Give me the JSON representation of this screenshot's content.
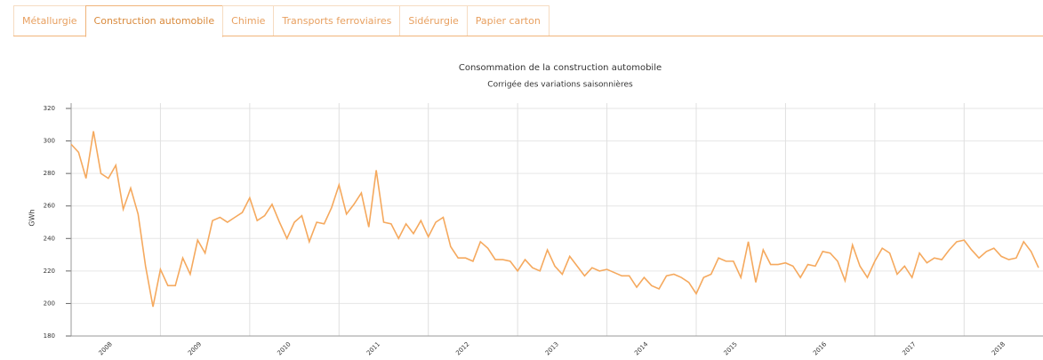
{
  "tabs": [
    "Métallurgie",
    "Construction automobile",
    "Chimie",
    "Transports ferroviaires",
    "Sidérurgie",
    "Papier carton"
  ],
  "active_tab": 1,
  "chart_data": {
    "type": "line",
    "title": "Consommation de la construction automobile",
    "subtitle": "Corrigée des variations saisonnières",
    "y_label": "GWh",
    "color": "#f5a95e",
    "grid": true,
    "x": [
      0,
      1,
      2,
      3,
      4,
      5,
      6,
      7,
      8,
      9,
      10,
      11,
      12,
      13,
      14,
      15,
      16,
      17,
      18,
      19,
      20,
      21,
      22,
      23,
      24,
      25,
      26,
      27,
      28,
      29,
      30,
      31,
      32,
      33,
      34,
      35,
      36,
      37,
      38,
      39,
      40,
      41,
      42,
      43,
      44,
      45,
      46,
      47,
      48,
      49,
      50,
      51,
      52,
      53,
      54,
      55,
      56,
      57,
      58,
      59,
      60,
      61,
      62,
      63,
      64,
      65,
      66,
      67,
      68,
      69,
      70,
      71,
      72,
      73,
      74,
      75,
      76,
      77,
      78,
      79,
      80,
      81,
      82,
      83,
      84,
      85,
      86,
      87,
      88,
      89,
      90,
      91,
      92,
      93,
      94,
      95,
      96,
      97,
      98,
      99,
      100,
      101,
      102,
      103,
      104,
      105,
      106,
      107,
      108,
      109,
      110,
      111,
      112,
      113,
      114,
      115,
      116,
      117,
      118,
      119,
      120,
      121,
      122,
      123,
      124,
      125,
      126,
      127,
      128,
      129,
      130
    ],
    "values": [
      298,
      293,
      277,
      306,
      280,
      277,
      285,
      258,
      271,
      255,
      223,
      198,
      221,
      211,
      211,
      228,
      218,
      239,
      231,
      251,
      253,
      250,
      253,
      256,
      265,
      251,
      254,
      261,
      250,
      240,
      250,
      254,
      238,
      250,
      249,
      259,
      273,
      255,
      261,
      268,
      247,
      282,
      250,
      249,
      240,
      249,
      243,
      251,
      241,
      250,
      253,
      235,
      228,
      228,
      226,
      238,
      234,
      227,
      227,
      226,
      220,
      227,
      222,
      220,
      233,
      223,
      218,
      229,
      223,
      217,
      222,
      220,
      221,
      219,
      217,
      217,
      210,
      216,
      211,
      209,
      217,
      218,
      216,
      213,
      206,
      216,
      218,
      228,
      226,
      226,
      216,
      238,
      213,
      233,
      224,
      224,
      225,
      223,
      216,
      224,
      223,
      232,
      231,
      226,
      214,
      236,
      223,
      216,
      226,
      234,
      231,
      218,
      223,
      216,
      231,
      225,
      228,
      227,
      233,
      238,
      239,
      233,
      228,
      232,
      234,
      229,
      227,
      228,
      238,
      232,
      222
    ],
    "xlim": [
      0,
      130.6
    ],
    "xticks": [
      {
        "value": 0,
        "label": "2008"
      },
      {
        "value": 12,
        "label": "2009"
      },
      {
        "value": 24,
        "label": "2010"
      },
      {
        "value": 36,
        "label": "2011"
      },
      {
        "value": 48,
        "label": "2012"
      },
      {
        "value": 60,
        "label": "2013"
      },
      {
        "value": 72,
        "label": "2014"
      },
      {
        "value": 84,
        "label": "2015"
      },
      {
        "value": 96,
        "label": "2016"
      },
      {
        "value": 108,
        "label": "2017"
      },
      {
        "value": 120,
        "label": "2018"
      }
    ],
    "ylim": [
      180,
      320
    ],
    "yticks": [
      180,
      200,
      220,
      240,
      260,
      280,
      300,
      320
    ]
  }
}
